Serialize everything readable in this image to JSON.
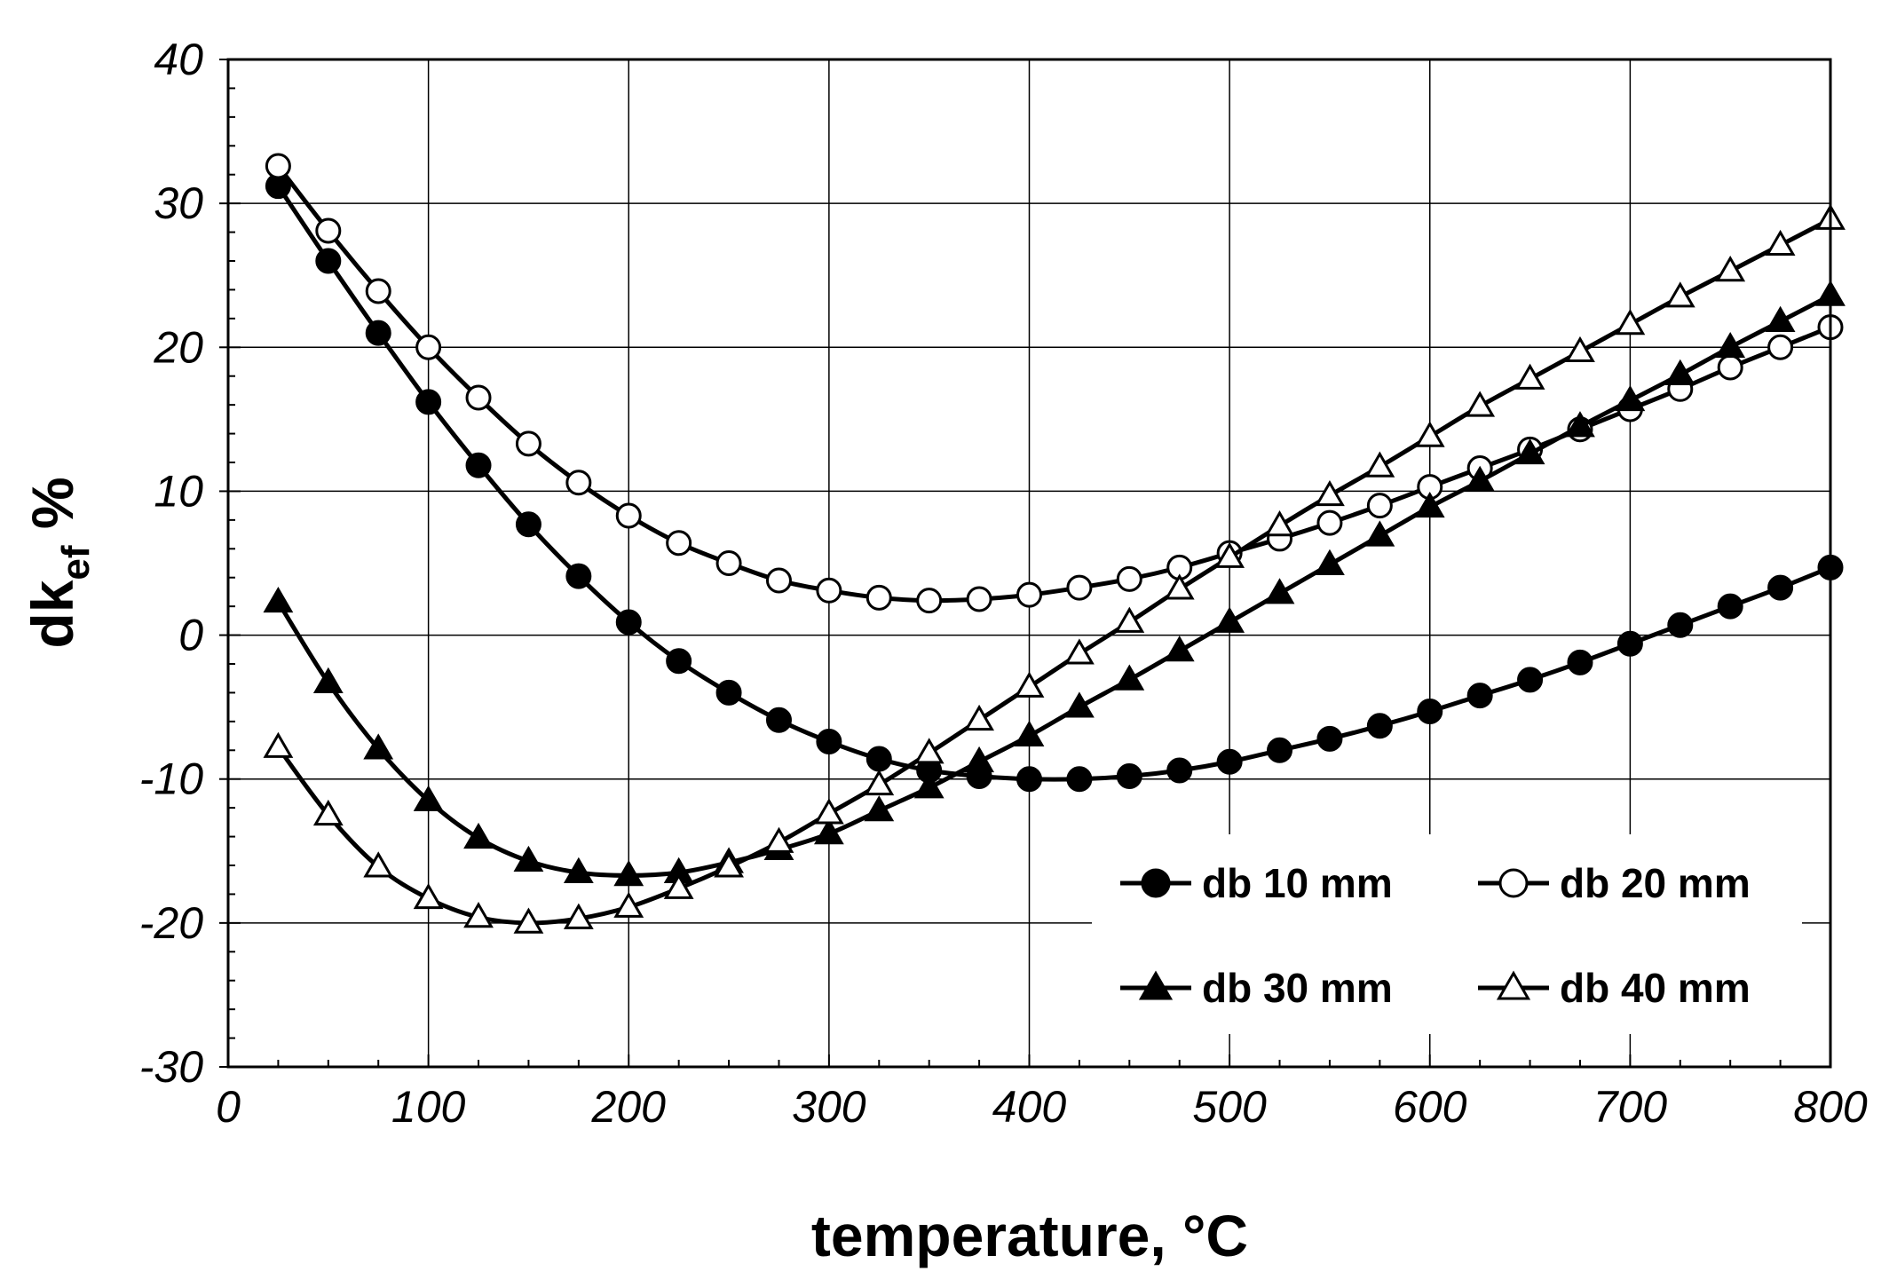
{
  "chart_data": {
    "type": "line",
    "title": "",
    "xlabel": "temperature, °C",
    "ylabel_main": "dk",
    "ylabel_sub": "ef",
    "ylabel_suffix": " %",
    "xlim": [
      0,
      800
    ],
    "ylim": [
      -30,
      40
    ],
    "xticks": [
      0,
      100,
      200,
      300,
      400,
      500,
      600,
      700,
      800
    ],
    "yticks": [
      -30,
      -20,
      -10,
      0,
      10,
      20,
      30,
      40
    ],
    "xtick_labels": [
      "0",
      "100",
      "200",
      "300",
      "400",
      "500",
      "600",
      "700",
      "800"
    ],
    "ytick_labels": [
      "-30",
      "-20",
      "-10",
      "0",
      "10",
      "20",
      "30",
      "40"
    ],
    "grid": true,
    "legend_position": "bottom-right",
    "x": [
      25,
      50,
      75,
      100,
      125,
      150,
      175,
      200,
      225,
      250,
      275,
      300,
      325,
      350,
      375,
      400,
      425,
      450,
      475,
      500,
      525,
      550,
      575,
      600,
      625,
      650,
      675,
      700,
      725,
      750,
      775,
      800
    ],
    "series": [
      {
        "name": "db 10 mm",
        "marker": "circle",
        "filled": true,
        "values": [
          31.2,
          26.0,
          21.0,
          16.2,
          11.8,
          7.7,
          4.1,
          0.9,
          -1.8,
          -4.0,
          -5.9,
          -7.4,
          -8.6,
          -9.4,
          -9.8,
          -10.0,
          -10.0,
          -9.8,
          -9.4,
          -8.8,
          -8.0,
          -7.2,
          -6.3,
          -5.3,
          -4.2,
          -3.1,
          -1.9,
          -0.6,
          0.7,
          2.0,
          3.3,
          4.7
        ]
      },
      {
        "name": "db 20 mm",
        "marker": "circle",
        "filled": false,
        "values": [
          32.6,
          28.1,
          23.9,
          20.0,
          16.5,
          13.3,
          10.6,
          8.3,
          6.4,
          5.0,
          3.8,
          3.1,
          2.6,
          2.4,
          2.5,
          2.8,
          3.3,
          3.9,
          4.7,
          5.7,
          6.7,
          7.8,
          9.0,
          10.3,
          11.6,
          12.9,
          14.3,
          15.7,
          17.1,
          18.6,
          20.0,
          21.4
        ]
      },
      {
        "name": "db 30 mm",
        "marker": "triangle",
        "filled": true,
        "values": [
          2.3,
          -3.3,
          -7.9,
          -11.5,
          -14.1,
          -15.7,
          -16.5,
          -16.7,
          -16.5,
          -15.8,
          -14.9,
          -13.8,
          -12.2,
          -10.6,
          -8.8,
          -7.0,
          -5.0,
          -3.1,
          -1.1,
          0.9,
          2.9,
          4.9,
          6.9,
          8.9,
          10.7,
          12.6,
          14.5,
          16.3,
          18.1,
          20.0,
          21.8,
          23.6
        ]
      },
      {
        "name": "db 40 mm",
        "marker": "triangle",
        "filled": false,
        "values": [
          -7.8,
          -12.5,
          -16.1,
          -18.3,
          -19.6,
          -20.0,
          -19.7,
          -18.9,
          -17.6,
          -16.1,
          -14.4,
          -12.4,
          -10.4,
          -8.2,
          -5.9,
          -3.6,
          -1.3,
          0.9,
          3.2,
          5.4,
          7.6,
          9.7,
          11.7,
          13.8,
          15.9,
          17.8,
          19.7,
          21.6,
          23.5,
          25.3,
          27.1,
          28.9
        ]
      }
    ]
  }
}
